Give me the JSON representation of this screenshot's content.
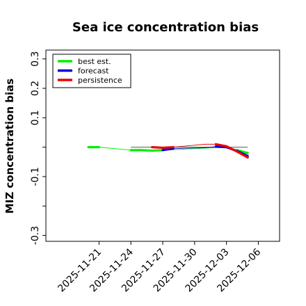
{
  "chart_data": {
    "type": "line",
    "title": "Sea ice concentration bias",
    "xlabel": "",
    "ylabel": "MIZ concentration bias",
    "ylim": [
      -0.32,
      0.33
    ],
    "yticks": [
      -0.3,
      -0.2,
      -0.1,
      0.0,
      0.1,
      0.2,
      0.3
    ],
    "ytick_labels": [
      "-0.3",
      "",
      "-0.1",
      "",
      "0.1",
      "0.2",
      "0.3"
    ],
    "xlim": [
      "2025-11-16",
      "2025-12-08"
    ],
    "xticks": [
      "2025-11-21",
      "2025-11-24",
      "2025-11-27",
      "2025-11-30",
      "2025-12-03",
      "2025-12-06"
    ],
    "highlight_tick": "2025-11-27",
    "highlight_color": "#228b22",
    "zero_line": {
      "x_start": "2025-11-24",
      "x_end": "2025-12-05",
      "y": 0.0
    },
    "legend_position": "upper-left",
    "series": [
      {
        "name": "best est.",
        "color": "#00ee00",
        "points": [
          {
            "x": "2025-11-20",
            "y": 0.0,
            "thick": true
          },
          {
            "x": "2025-11-21",
            "y": 0.0,
            "thick": true
          },
          {
            "x": "2025-11-24",
            "y": -0.01,
            "thick": true
          },
          {
            "x": "2025-11-25",
            "y": -0.01,
            "thick": true
          },
          {
            "x": "2025-11-26",
            "y": -0.012,
            "thick": true
          },
          {
            "x": "2025-11-27",
            "y": -0.01,
            "thick": true
          },
          {
            "x": "2025-12-03",
            "y": 0.0,
            "thick": false
          },
          {
            "x": "2025-12-04",
            "y": -0.01,
            "thick": true
          },
          {
            "x": "2025-12-05",
            "y": -0.02,
            "thick": true
          }
        ]
      },
      {
        "name": "forecast",
        "color": "#0000dd",
        "points": [
          {
            "x": "2025-11-27",
            "y": -0.01,
            "thick": true
          },
          {
            "x": "2025-11-28",
            "y": -0.005,
            "thick": true
          },
          {
            "x": "2025-12-01",
            "y": -0.002,
            "thick": false
          },
          {
            "x": "2025-12-02",
            "y": 0.002,
            "thick": true
          },
          {
            "x": "2025-12-03",
            "y": 0.0,
            "thick": true
          },
          {
            "x": "2025-12-04",
            "y": -0.013,
            "thick": true
          },
          {
            "x": "2025-12-05",
            "y": -0.03,
            "thick": true
          }
        ]
      },
      {
        "name": "persistence",
        "color": "#ee0000",
        "points": [
          {
            "x": "2025-11-26",
            "y": 0.0,
            "thick": true
          },
          {
            "x": "2025-11-27",
            "y": -0.002,
            "thick": true
          },
          {
            "x": "2025-11-28",
            "y": 0.0,
            "thick": true
          },
          {
            "x": "2025-12-01",
            "y": 0.01,
            "thick": false
          },
          {
            "x": "2025-12-02",
            "y": 0.01,
            "thick": true
          },
          {
            "x": "2025-12-03",
            "y": 0.003,
            "thick": true
          },
          {
            "x": "2025-12-04",
            "y": -0.015,
            "thick": true
          },
          {
            "x": "2025-12-05",
            "y": -0.035,
            "thick": true
          }
        ]
      }
    ]
  }
}
